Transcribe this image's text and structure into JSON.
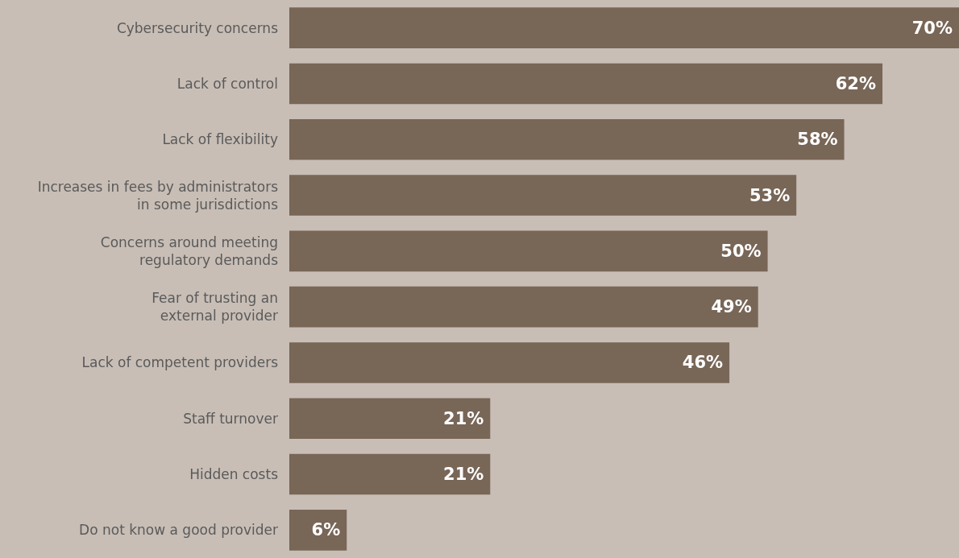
{
  "chart_data": {
    "type": "bar",
    "orientation": "horizontal",
    "categories": [
      "Cybersecurity concerns",
      "Lack of control",
      "Lack of flexibility",
      "Increases in fees by administrators\nin some jurisdictions",
      "Concerns around meeting\nregulatory demands",
      "Fear of trusting an\nexternal provider",
      "Lack of competent providers",
      "Staff turnover",
      "Hidden costs",
      "Do not know a good provider"
    ],
    "values": [
      70,
      62,
      58,
      53,
      50,
      49,
      46,
      21,
      21,
      6
    ],
    "value_labels": [
      "70%",
      "62%",
      "58%",
      "53%",
      "50%",
      "49%",
      "46%",
      "21%",
      "21%",
      "6%"
    ],
    "color": "#786657",
    "xlim": [
      0,
      70
    ],
    "grid": false
  }
}
